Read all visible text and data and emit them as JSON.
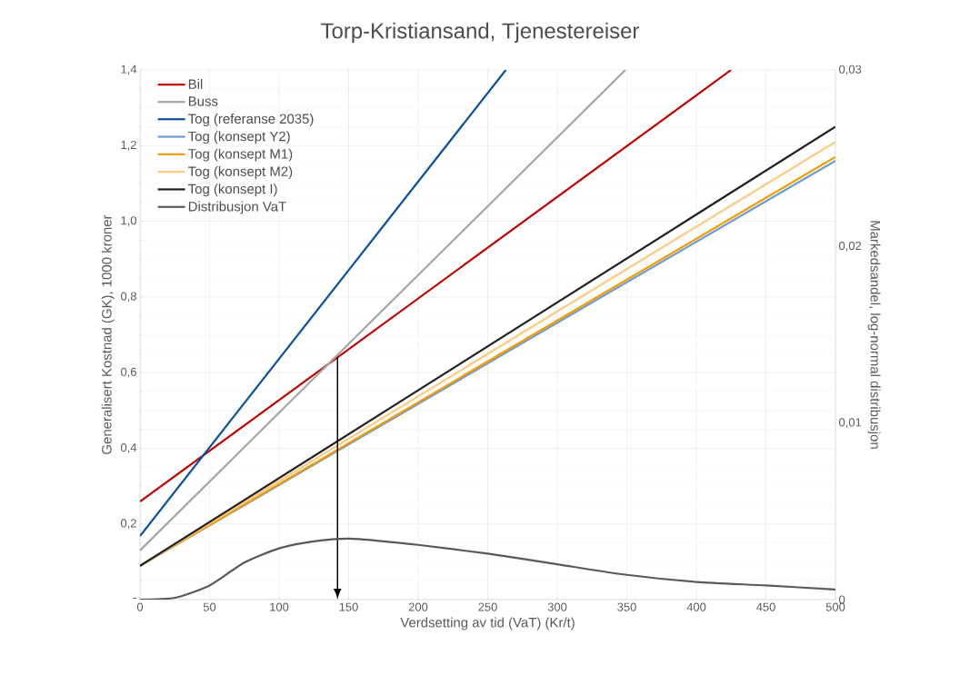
{
  "chart_data": {
    "type": "line",
    "title": "Torp-Kristiansand, Tjenestereiser",
    "xlabel": "Verdsetting av tid (VaT) (Kr/t)",
    "ylabel": "Generalisert Kostnad (GK), 1000 kroner",
    "y2label": "Markedsandel, log-normal distribusjon",
    "xlim": [
      0,
      500
    ],
    "xticks": [
      0,
      50,
      100,
      150,
      200,
      250,
      300,
      350,
      400,
      450,
      500
    ],
    "ylim": [
      0,
      1.4
    ],
    "yticks": [
      {
        "value": 0,
        "label": "-"
      },
      {
        "value": 0.2,
        "label": "0,2"
      },
      {
        "value": 0.4,
        "label": "0,4"
      },
      {
        "value": 0.6,
        "label": "0,6"
      },
      {
        "value": 0.8,
        "label": "0,8"
      },
      {
        "value": 1.0,
        "label": "1,0"
      },
      {
        "value": 1.2,
        "label": "1,2"
      },
      {
        "value": 1.4,
        "label": "1,4"
      }
    ],
    "y2lim": [
      0,
      0.03
    ],
    "y2ticks": [
      0,
      {
        "value": 0.01,
        "label": "0,01"
      },
      {
        "value": 0.02,
        "label": "0,02"
      },
      {
        "value": 0.03,
        "label": "0,03"
      }
    ],
    "grid": true,
    "legend": "top left",
    "marker": "none",
    "line_style": "solid",
    "series": [
      {
        "name": "Bil",
        "color": "#c00000",
        "x": [
          0,
          425
        ],
        "values": [
          0.259,
          1.4
        ]
      },
      {
        "name": "Buss",
        "color": "#a5a5a5",
        "x": [
          0,
          349
        ],
        "values": [
          0.13,
          1.4
        ]
      },
      {
        "name": "Tog (referanse 2035)",
        "color": "#0b4fa0",
        "x": [
          0,
          263
        ],
        "values": [
          0.168,
          1.4
        ]
      },
      {
        "name": "Tog (konsept Y2)",
        "color": "#6a9bd4",
        "x": [
          0,
          500
        ],
        "values": [
          0.089,
          1.16
        ]
      },
      {
        "name": "Tog (konsept M1)",
        "color": "#f59b00",
        "x": [
          0,
          500
        ],
        "values": [
          0.089,
          1.17
        ]
      },
      {
        "name": "Tog (konsept M2)",
        "color": "#fdca80",
        "x": [
          0,
          500
        ],
        "values": [
          0.089,
          1.21
        ]
      },
      {
        "name": "Tog (konsept I)",
        "color": "#1f1f1f",
        "x": [
          0,
          500
        ],
        "values": [
          0.089,
          1.25
        ]
      },
      {
        "name": "Distribusjon VaT",
        "color": "#595959",
        "axis": "y2",
        "x": [
          0,
          25,
          50,
          75,
          100,
          125,
          150,
          175,
          200,
          250,
          300,
          350,
          400,
          450,
          500
        ],
        "values": [
          0,
          0.0001,
          0.0008,
          0.0021,
          0.0029,
          0.0033,
          0.00345,
          0.0033,
          0.0031,
          0.0026,
          0.002,
          0.0014,
          0.001,
          0.0008,
          0.00057
        ]
      }
    ],
    "ref_lines": [
      {
        "axis": "x",
        "value": 142,
        "color": "#000000",
        "line_style": "solid"
      }
    ]
  }
}
